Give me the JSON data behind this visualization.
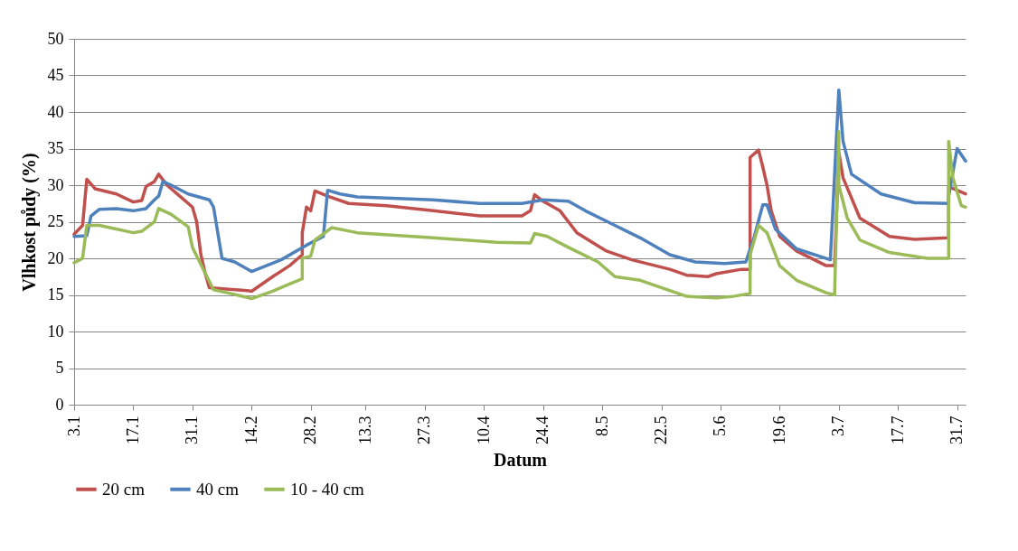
{
  "chart_data": {
    "type": "line",
    "xlabel": "Datum",
    "ylabel": "Vlhkost půdy (%)",
    "xlim": [
      "--01-03",
      "--08-02"
    ],
    "xticks": [
      {
        "value": "--01-03",
        "label": "3.1"
      },
      {
        "value": "--01-17",
        "label": "17.1"
      },
      {
        "value": "--01-31",
        "label": "31.1"
      },
      {
        "value": "--02-14",
        "label": "14.2"
      },
      {
        "value": "--02-28",
        "label": "28.2"
      },
      {
        "value": "--03-13",
        "label": "13.3"
      },
      {
        "value": "--03-27",
        "label": "27.3"
      },
      {
        "value": "--04-10",
        "label": "10.4"
      },
      {
        "value": "--04-24",
        "label": "24.4"
      },
      {
        "value": "--05-08",
        "label": "8.5"
      },
      {
        "value": "--05-22",
        "label": "22.5"
      },
      {
        "value": "--06-05",
        "label": "5.6"
      },
      {
        "value": "--06-19",
        "label": "19.6"
      },
      {
        "value": "--07-03",
        "label": "3.7"
      },
      {
        "value": "--07-17",
        "label": "17.7"
      },
      {
        "value": "--07-31",
        "label": "31.7"
      }
    ],
    "ylim": [
      0,
      50
    ],
    "yticks": [
      0,
      5,
      10,
      15,
      20,
      25,
      30,
      35,
      40,
      45,
      50
    ],
    "grid": "y",
    "legend": "bottom",
    "marker": "none",
    "line_style": "solid",
    "series": [
      {
        "name": "20 cm",
        "color": "#c0504d",
        "x": [
          "--01-03",
          "--01-05",
          "--01-06",
          "--01-08",
          "--01-13",
          "--01-17",
          "--01-19",
          "--01-20",
          "--01-22",
          "--01-23",
          "--01-25",
          "--01-28",
          "--01-31",
          "--02-01",
          "--02-02",
          "--02-03",
          "--02-04",
          "--02-08",
          "--02-13",
          "--02-14",
          "--02-19",
          "--02-23",
          "--02-26",
          "--02-26",
          "--02-27",
          "--02-28",
          "--03-01",
          "--03-04",
          "--03-09",
          "--03-18",
          "--03-29",
          "--04-09",
          "--04-19",
          "--04-21",
          "--04-22",
          "--04-24",
          "--04-28",
          "--05-02",
          "--05-09",
          "--05-15",
          "--05-24",
          "--05-28",
          "--06-02",
          "--06-04",
          "--06-10",
          "--06-12",
          "--06-12",
          "--06-14",
          "--06-15",
          "--06-16",
          "--06-17",
          "--06-19",
          "--06-23",
          "--06-30",
          "--07-02",
          "--07-03",
          "--07-04",
          "--07-08",
          "--07-15",
          "--07-21",
          "--07-29",
          "--07-29",
          "--08-02"
        ],
        "values": [
          23.3,
          24.5,
          30.8,
          29.5,
          28.8,
          27.7,
          27.9,
          29.8,
          30.5,
          31.5,
          30.0,
          28.5,
          27.0,
          25.0,
          20.5,
          18.0,
          16.0,
          15.8,
          15.6,
          15.5,
          17.5,
          19.0,
          20.5,
          23.5,
          27.0,
          26.5,
          29.2,
          28.5,
          27.5,
          27.2,
          26.5,
          25.8,
          25.8,
          26.5,
          28.7,
          27.8,
          26.5,
          23.5,
          21.0,
          19.8,
          18.5,
          17.7,
          17.5,
          17.9,
          18.5,
          18.5,
          33.8,
          34.8,
          32.5,
          30.0,
          26.5,
          23.0,
          21.0,
          19.0,
          19.0,
          34.5,
          31.0,
          25.5,
          23.0,
          22.6,
          22.8,
          29.8,
          28.8
        ]
      },
      {
        "name": "40 cm",
        "color": "#4f81bd",
        "x": [
          "--01-03",
          "--01-06",
          "--01-07",
          "--01-09",
          "--01-13",
          "--01-17",
          "--01-20",
          "--01-22",
          "--01-23",
          "--01-24",
          "--01-26",
          "--01-30",
          "--02-04",
          "--02-05",
          "--02-06",
          "--02-07",
          "--02-10",
          "--02-14",
          "--02-21",
          "--02-27",
          "--03-03",
          "--03-04",
          "--03-07",
          "--03-11",
          "--03-29",
          "--04-09",
          "--04-19",
          "--04-24",
          "--04-30",
          "--05-04",
          "--05-11",
          "--05-17",
          "--05-24",
          "--05-30",
          "--06-06",
          "--06-11",
          "--06-13",
          "--06-15",
          "--06-16",
          "--06-18",
          "--06-23",
          "--07-01",
          "--07-03",
          "--07-04",
          "--07-06",
          "--07-13",
          "--07-21",
          "--07-29",
          "--07-29",
          "--07-31",
          "--08-02"
        ],
        "values": [
          23.0,
          23.1,
          25.8,
          26.7,
          26.8,
          26.5,
          26.8,
          28.0,
          28.5,
          30.5,
          30.0,
          28.8,
          28.0,
          27.0,
          23.5,
          20.0,
          19.5,
          18.2,
          19.8,
          21.8,
          23.0,
          29.3,
          28.8,
          28.4,
          28.0,
          27.5,
          27.5,
          28.0,
          27.8,
          26.5,
          24.5,
          22.8,
          20.5,
          19.5,
          19.3,
          19.5,
          23.0,
          27.3,
          27.3,
          24.0,
          21.3,
          19.8,
          43.0,
          36.0,
          31.5,
          28.8,
          27.6,
          27.5,
          28.5,
          35.0,
          33.3
        ]
      },
      {
        "name": "10 - 40 cm",
        "color": "#9bbb59",
        "x": [
          "--01-03",
          "--01-05",
          "--01-06",
          "--01-09",
          "--01-17",
          "--01-19",
          "--01-22",
          "--01-23",
          "--01-26",
          "--01-30",
          "--01-31",
          "--02-03",
          "--02-05",
          "--02-09",
          "--02-14",
          "--02-19",
          "--02-23",
          "--02-26",
          "--02-26",
          "--02-28",
          "--03-01",
          "--03-05",
          "--03-11",
          "--03-29",
          "--04-13",
          "--04-21",
          "--04-22",
          "--04-25",
          "--04-30",
          "--05-07",
          "--05-11",
          "--05-17",
          "--05-28",
          "--06-04",
          "--06-08",
          "--06-12",
          "--06-12",
          "--06-14",
          "--06-16",
          "--06-19",
          "--06-23",
          "--06-30",
          "--07-02",
          "--07-03",
          "--07-03",
          "--07-05",
          "--07-08",
          "--07-15",
          "--07-24",
          "--07-29",
          "--07-29",
          "--07-30",
          "--08-01",
          "--08-02"
        ],
        "values": [
          19.4,
          20.0,
          24.5,
          24.5,
          23.5,
          23.7,
          25.0,
          26.8,
          26.0,
          24.3,
          21.5,
          18.0,
          15.7,
          15.2,
          14.5,
          15.5,
          16.5,
          17.2,
          20.0,
          20.3,
          22.5,
          24.2,
          23.5,
          22.8,
          22.2,
          22.1,
          23.4,
          23.0,
          21.5,
          19.5,
          17.5,
          17.0,
          14.8,
          14.6,
          14.8,
          15.2,
          20.5,
          24.5,
          23.5,
          19.0,
          17.0,
          15.3,
          15.0,
          37.3,
          30.0,
          25.5,
          22.5,
          20.8,
          20.0,
          20.0,
          36.0,
          31.0,
          27.2,
          27.0
        ]
      }
    ]
  }
}
